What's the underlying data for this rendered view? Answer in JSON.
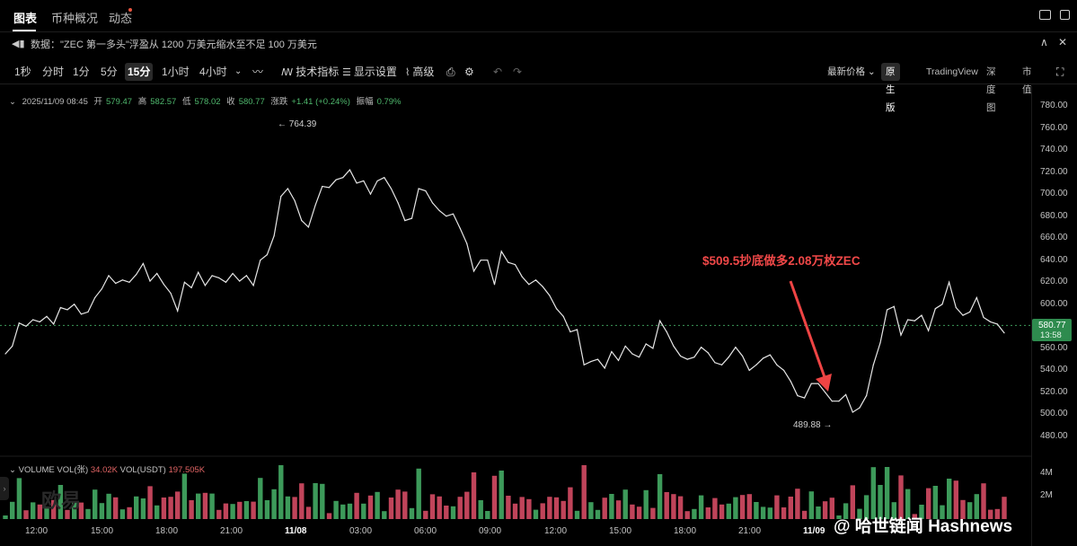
{
  "nav": {
    "tabs": [
      "图表",
      "币种概况",
      "动态"
    ]
  },
  "news": {
    "text": "数据：\"ZEC 第一多头\"浮盈从 1200 万美元缩水至不足 100 万美元"
  },
  "toolbar": {
    "timeframes": [
      "1秒",
      "分时",
      "1分",
      "5分",
      "15分",
      "1小时",
      "4小时"
    ],
    "active_timeframe": "15分",
    "tools": [
      "技术指标",
      "显示设置",
      "高级"
    ],
    "price_type": "最新价格",
    "views": [
      "原生版",
      "TradingView",
      "深度图",
      "市值"
    ],
    "active_view": "原生版"
  },
  "ohlc": {
    "datetime": "2025/11/09 08:45",
    "open_label": "开",
    "open": "579.47",
    "high_label": "高",
    "high": "582.57",
    "low_label": "低",
    "low": "578.02",
    "close_label": "收",
    "close": "580.77",
    "change_label": "涨跌",
    "change": "+1.41 (+0.24%)",
    "amp_label": "振幅",
    "amp": "0.79%"
  },
  "current_price": {
    "price": "580.77",
    "countdown": "13:58"
  },
  "annotations": {
    "high_marker": "← 764.39",
    "low_marker": "489.88 →",
    "callout": "$509.5抄底做多2.08万枚ZEC"
  },
  "volume": {
    "legend_name": "VOLUME",
    "vol_label": "VOL(张)",
    "vol_value": "34.02K",
    "usdt_label": "VOL(USDT)",
    "usdt_value": "197.505K",
    "ticks": [
      "4M",
      "2M"
    ]
  },
  "watermark": "欧易",
  "brand": "@ 哈世链闻 Hashnews",
  "colors": {
    "up": "#3d9a5a",
    "down": "#c0445a",
    "line": "#e6e6e6",
    "callout": "#f04848"
  },
  "chart_data": {
    "type": "line",
    "y_ticks": [
      "780.00",
      "760.00",
      "740.00",
      "720.00",
      "700.00",
      "680.00",
      "660.00",
      "640.00",
      "620.00",
      "600.00",
      "580.00",
      "560.00",
      "540.00",
      "520.00",
      "500.00",
      "480.00"
    ],
    "x_ticks": [
      "12:00",
      "15:00",
      "18:00",
      "21:00",
      "11/08",
      "03:00",
      "06:00",
      "09:00",
      "12:00",
      "15:00",
      "18:00",
      "21:00",
      "11/09"
    ],
    "ylim": [
      480,
      780
    ],
    "values": [
      555,
      562,
      583,
      580,
      586,
      584,
      589,
      582,
      597,
      595,
      600,
      591,
      593,
      606,
      614,
      626,
      619,
      622,
      620,
      627,
      637,
      621,
      628,
      618,
      610,
      594,
      620,
      615,
      629,
      617,
      626,
      624,
      620,
      628,
      621,
      626,
      617,
      640,
      645,
      662,
      698,
      705,
      694,
      676,
      670,
      690,
      707,
      706,
      713,
      715,
      722,
      710,
      712,
      700,
      712,
      715,
      705,
      692,
      676,
      678,
      705,
      703,
      692,
      685,
      680,
      682,
      669,
      655,
      630,
      640,
      640,
      618,
      648,
      638,
      636,
      625,
      618,
      622,
      616,
      608,
      596,
      589,
      575,
      577,
      545,
      548,
      550,
      542,
      557,
      549,
      562,
      555,
      552,
      564,
      560,
      585,
      575,
      562,
      553,
      550,
      552,
      561,
      556,
      547,
      545,
      552,
      561,
      553,
      540,
      545,
      551,
      554,
      545,
      540,
      530,
      517,
      515,
      528,
      528,
      520,
      512,
      512,
      518,
      502,
      506,
      517,
      545,
      565,
      595,
      598,
      572,
      586,
      585,
      590,
      576,
      596,
      600,
      620,
      597,
      590,
      593,
      606,
      588,
      584,
      582,
      574
    ]
  }
}
